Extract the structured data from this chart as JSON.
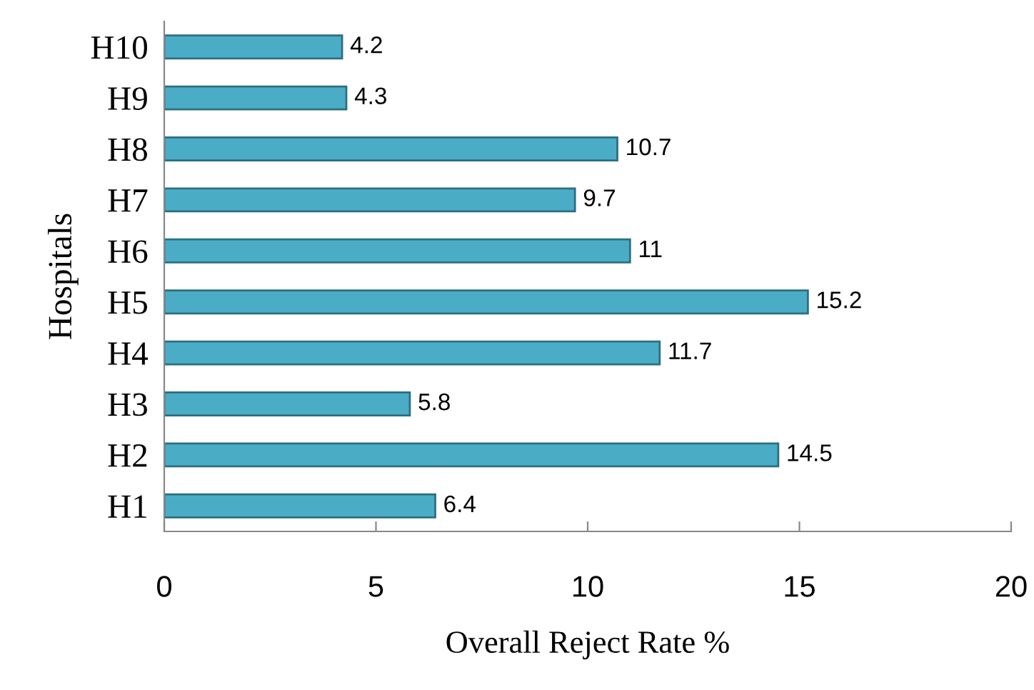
{
  "chart_data": {
    "type": "bar",
    "orientation": "horizontal",
    "xlabel": "Overall Reject Rate %",
    "ylabel": "Hospitals",
    "categories": [
      "H10",
      "H9",
      "H8",
      "H7",
      "H6",
      "H5",
      "H4",
      "H3",
      "H2",
      "H1"
    ],
    "values": [
      4.2,
      4.3,
      10.7,
      9.7,
      11,
      15.2,
      11.7,
      5.8,
      14.5,
      6.4
    ],
    "color": "#4bacc6",
    "xlim": [
      0,
      20
    ],
    "xticks": [
      0,
      5,
      10,
      15,
      20
    ],
    "grid": false,
    "data_labels": true
  }
}
